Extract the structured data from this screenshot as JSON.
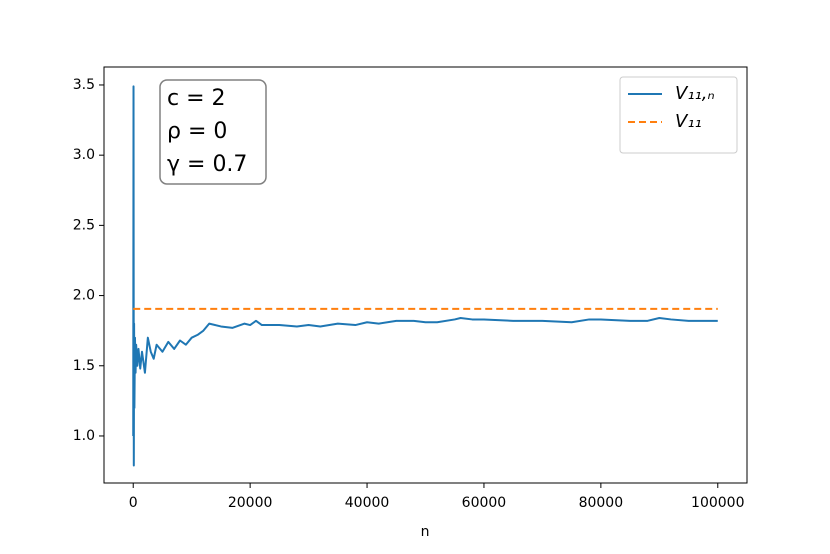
{
  "chart_data": {
    "type": "line",
    "xlabel": "n",
    "annotation": [
      "c = 2",
      "ρ = 0",
      "γ = 0.7"
    ],
    "legend": "upper right",
    "xlim": [
      -5000,
      105000
    ],
    "ylim": [
      0.665,
      3.628
    ],
    "xticks": [
      0,
      20000,
      40000,
      60000,
      80000,
      100000
    ],
    "yticks": [
      {
        "value": 1,
        "label": "1.0"
      },
      1.5,
      {
        "value": 2,
        "label": "2.0"
      },
      2.5,
      {
        "value": 3,
        "label": "3.0"
      },
      3.5
    ],
    "series": [
      {
        "name": "V₁₁,ₙ",
        "color": "#1f77b4",
        "dash": false,
        "x": [
          0,
          50,
          100,
          150,
          200,
          300,
          400,
          500,
          700,
          900,
          1200,
          1500,
          2000,
          2500,
          3000,
          3500,
          4000,
          5000,
          6000,
          7000,
          8000,
          9000,
          10000,
          11000,
          12000,
          13000,
          15000,
          17000,
          19000,
          20000,
          21000,
          22000,
          25000,
          28000,
          30000,
          32000,
          35000,
          38000,
          40000,
          42000,
          45000,
          48000,
          50000,
          52000,
          55000,
          56000,
          58000,
          60000,
          65000,
          70000,
          75000,
          78000,
          80000,
          85000,
          88000,
          90000,
          92000,
          95000,
          100000
        ],
        "values": [
          1.0,
          3.49,
          0.79,
          1.8,
          1.2,
          1.7,
          1.45,
          1.65,
          1.5,
          1.62,
          1.48,
          1.6,
          1.45,
          1.7,
          1.6,
          1.55,
          1.65,
          1.6,
          1.67,
          1.62,
          1.68,
          1.65,
          1.7,
          1.72,
          1.75,
          1.8,
          1.78,
          1.77,
          1.8,
          1.79,
          1.82,
          1.79,
          1.79,
          1.78,
          1.79,
          1.78,
          1.8,
          1.79,
          1.81,
          1.8,
          1.82,
          1.82,
          1.81,
          1.81,
          1.83,
          1.84,
          1.83,
          1.83,
          1.82,
          1.82,
          1.81,
          1.83,
          1.83,
          1.82,
          1.82,
          1.84,
          1.83,
          1.82,
          1.82
        ]
      },
      {
        "name": "V₁₁",
        "color": "#ff7f0e",
        "dash": true,
        "x": [
          0,
          100000
        ],
        "values": [
          1.905,
          1.905
        ]
      }
    ]
  }
}
